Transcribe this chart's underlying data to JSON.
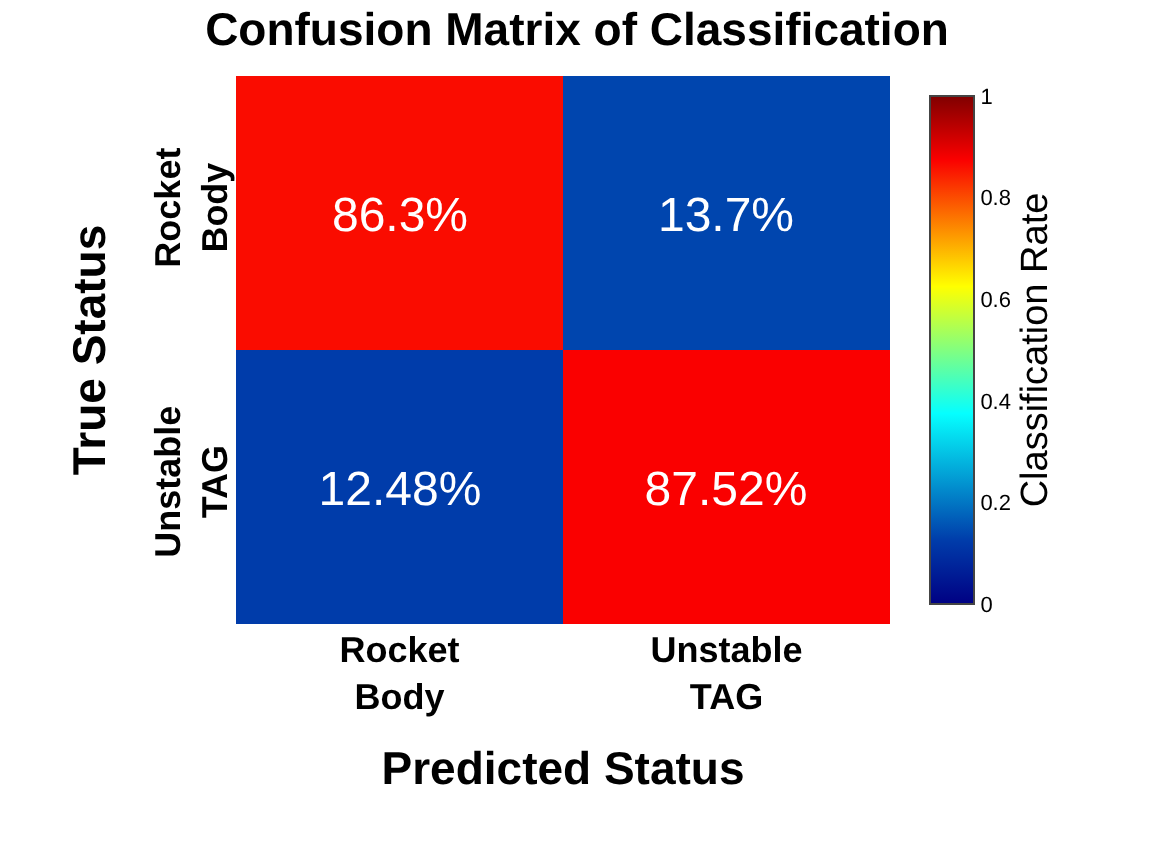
{
  "chart_data": {
    "type": "heatmap",
    "title": "Confusion Matrix of Classification",
    "xlabel": "Predicted Status",
    "ylabel": "True Status",
    "clabel": "Classification Rate",
    "categories": [
      "Rocket Body",
      "Unstable TAG"
    ],
    "y_categories": [
      "Rocket Body",
      "Unstable TAG"
    ],
    "cells": [
      [
        0.863,
        0.137
      ],
      [
        0.1248,
        0.8752
      ]
    ],
    "cell_labels": [
      [
        "86.3%",
        "13.7%"
      ],
      [
        "12.48%",
        "87.52%"
      ]
    ],
    "clim": [
      0,
      1
    ],
    "cticks": [
      0,
      0.2,
      0.4,
      0.6,
      0.8,
      1
    ]
  }
}
